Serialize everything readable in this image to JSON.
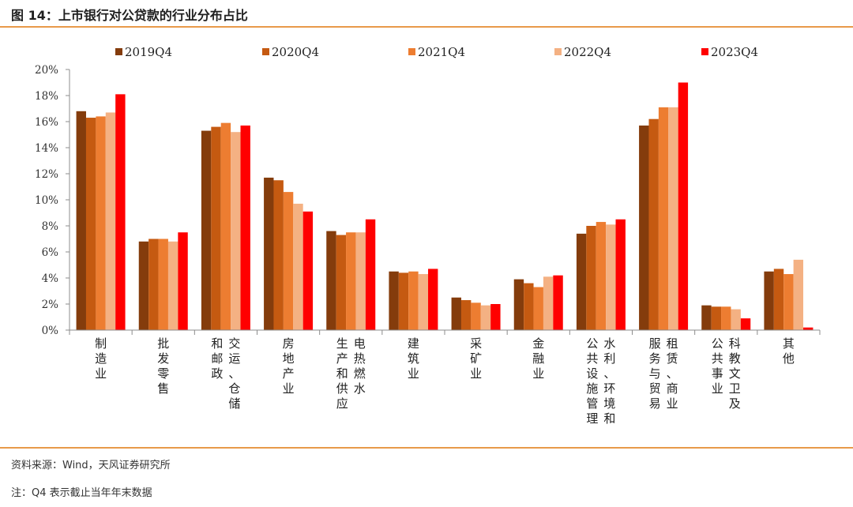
{
  "header": {
    "title": "图 14：上市银行对公贷款的行业分布占比"
  },
  "footer": {
    "source": "资料来源：Wind，天风证券研究所",
    "note": "注：Q4 表示截止当年年末数据"
  },
  "chart_data": {
    "type": "bar",
    "title": "",
    "xlabel": "",
    "ylabel": "",
    "ylim": [
      0,
      20
    ],
    "yticks": [
      0,
      2,
      4,
      6,
      8,
      10,
      12,
      14,
      16,
      18,
      20
    ],
    "ytick_suffix": "%",
    "legend_position": "top",
    "grid": false,
    "categories": [
      [
        "制造业"
      ],
      [
        "批发零售"
      ],
      [
        "交运、仓储",
        "和邮政"
      ],
      [
        "房地产业"
      ],
      [
        "电热燃水",
        "生产和供应"
      ],
      [
        "建筑业"
      ],
      [
        "采矿业"
      ],
      [
        "金融业"
      ],
      [
        "水利、环境和",
        "公共设施管理"
      ],
      [
        "租赁、商业",
        "服务与贸易"
      ],
      [
        "科教文卫及",
        "公共事业"
      ],
      [
        "其他"
      ]
    ],
    "series": [
      {
        "name": "2019Q4",
        "color": "#843c0c",
        "values": [
          16.8,
          6.8,
          15.3,
          11.7,
          7.6,
          4.5,
          2.5,
          3.9,
          7.4,
          15.7,
          1.9,
          4.5
        ]
      },
      {
        "name": "2020Q4",
        "color": "#c55a11",
        "values": [
          16.3,
          7.0,
          15.6,
          11.5,
          7.3,
          4.4,
          2.3,
          3.6,
          8.0,
          16.2,
          1.8,
          4.7
        ]
      },
      {
        "name": "2021Q4",
        "color": "#ed7d31",
        "values": [
          16.4,
          7.0,
          15.9,
          10.6,
          7.5,
          4.5,
          2.1,
          3.3,
          8.3,
          17.1,
          1.8,
          4.3
        ]
      },
      {
        "name": "2022Q4",
        "color": "#f4b183",
        "values": [
          16.7,
          6.8,
          15.2,
          9.7,
          7.5,
          4.3,
          1.9,
          4.1,
          8.1,
          17.1,
          1.6,
          5.4
        ]
      },
      {
        "name": "2023Q4",
        "color": "#ff0000",
        "values": [
          18.1,
          7.5,
          15.7,
          9.1,
          8.5,
          4.7,
          2.0,
          4.2,
          8.5,
          19.0,
          0.9,
          0.2
        ]
      }
    ]
  }
}
